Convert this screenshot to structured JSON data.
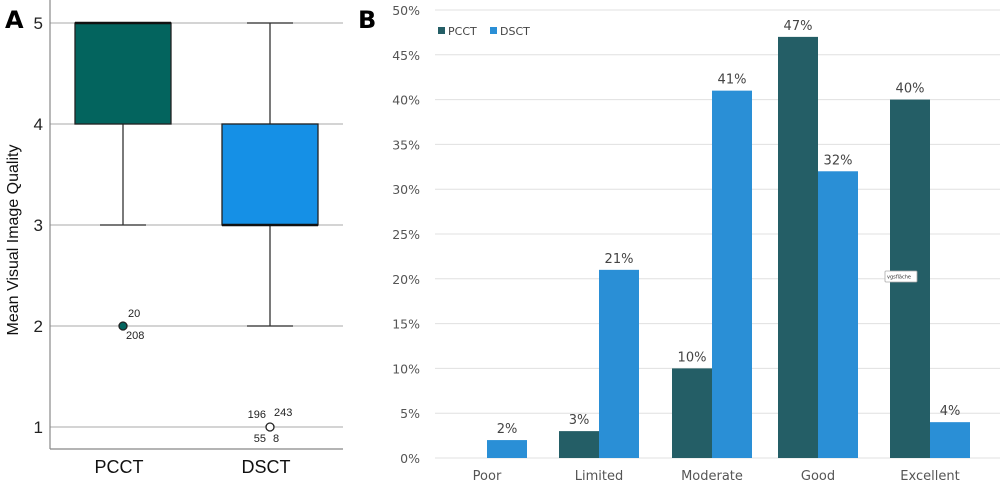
{
  "chart_data": [
    {
      "panel": "A",
      "type": "box",
      "ylabel": "Mean Visual Image Quality",
      "ylim": [
        0.8,
        5.1
      ],
      "yticks": [
        1,
        2,
        3,
        4,
        5
      ],
      "categories": [
        "PCCT",
        "DSCT"
      ],
      "boxes": [
        {
          "category": "PCCT",
          "color": "#03645E",
          "whisker_low": 3,
          "q1": 4,
          "median": 5,
          "q3": 5,
          "whisker_high": 5,
          "outliers": [
            {
              "value": 2,
              "labels": [
                "20",
                "208"
              ]
            }
          ]
        },
        {
          "category": "DSCT",
          "color": "#1590E6",
          "whisker_low": 2,
          "q1": 3,
          "median": 3,
          "q3": 4,
          "whisker_high": 5,
          "outliers": [
            {
              "value": 1,
              "labels": [
                "196",
                "243",
                "55",
                "8"
              ]
            }
          ]
        }
      ],
      "grid": true
    },
    {
      "panel": "B",
      "type": "bar",
      "categories": [
        "Poor",
        "Limited",
        "Moderate",
        "Good",
        "Excellent"
      ],
      "series": [
        {
          "name": "PCCT",
          "color": "#245E66",
          "values": [
            0,
            3,
            10,
            47,
            40
          ]
        },
        {
          "name": "DSCT",
          "color": "#2A8FD6",
          "values": [
            2,
            21,
            41,
            32,
            4
          ]
        }
      ],
      "ylim": [
        0,
        50
      ],
      "yticks": [
        "0%",
        "5%",
        "10%",
        "15%",
        "20%",
        "25%",
        "30%",
        "35%",
        "40%",
        "45%",
        "50%"
      ],
      "legend_position": "top-left",
      "grid": true,
      "annotation": "vgsfläche"
    }
  ]
}
